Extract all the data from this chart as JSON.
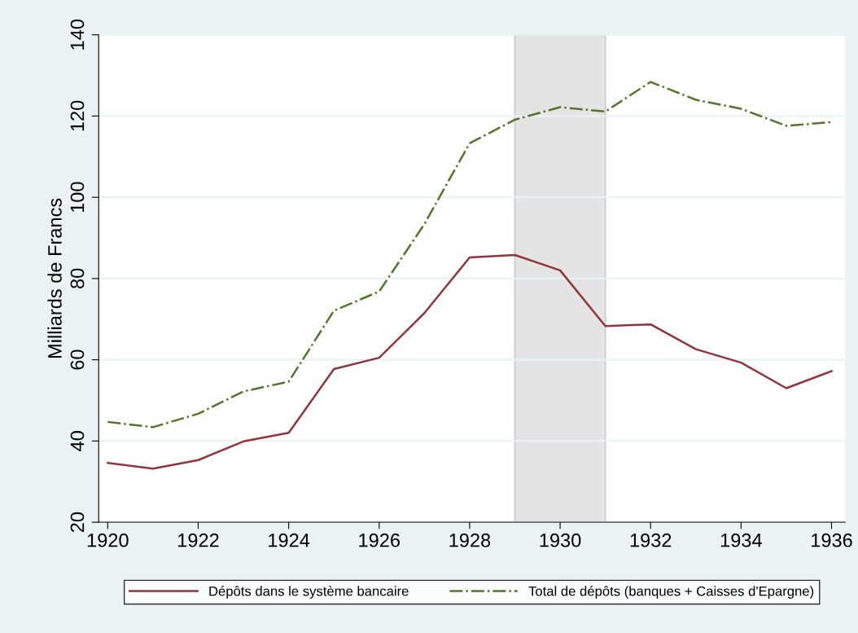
{
  "chart_data": {
    "type": "line",
    "ylabel": "Milliards de Francs",
    "x": [
      1920,
      1921,
      1922,
      1923,
      1924,
      1925,
      1926,
      1927,
      1928,
      1929,
      1930,
      1931,
      1932,
      1933,
      1934,
      1935,
      1936
    ],
    "series": [
      {
        "name": "Dépôts dans le système bancaire",
        "color": "#90353b",
        "line_style": "solid",
        "values": [
          34.6,
          33.2,
          35.3,
          39.9,
          42.0,
          57.7,
          60.5,
          71.5,
          85.2,
          85.8,
          82.0,
          68.3,
          68.7,
          62.6,
          59.3,
          53.0,
          57.2
        ]
      },
      {
        "name": "Total de dépôts (banques + Caisses d'Epargne)",
        "color": "#55752f",
        "line_style": "dashdot",
        "values": [
          44.7,
          43.4,
          46.7,
          52.2,
          54.6,
          72.1,
          76.8,
          93.4,
          113.3,
          119.1,
          122.2,
          121.1,
          128.4,
          124.0,
          121.8,
          117.6,
          118.5
        ]
      }
    ],
    "xlim": [
      1919.8,
      1936.3
    ],
    "xticks": [
      1920,
      1922,
      1924,
      1926,
      1928,
      1930,
      1932,
      1934,
      1936
    ],
    "ylim": [
      20,
      140
    ],
    "yticks": [
      20,
      40,
      60,
      80,
      100,
      120,
      140
    ],
    "bands": [
      {
        "axis": "x",
        "from": 1929,
        "to": 1931,
        "color": "#e4e4e4"
      }
    ],
    "grid": "y",
    "legend": "bottom"
  }
}
